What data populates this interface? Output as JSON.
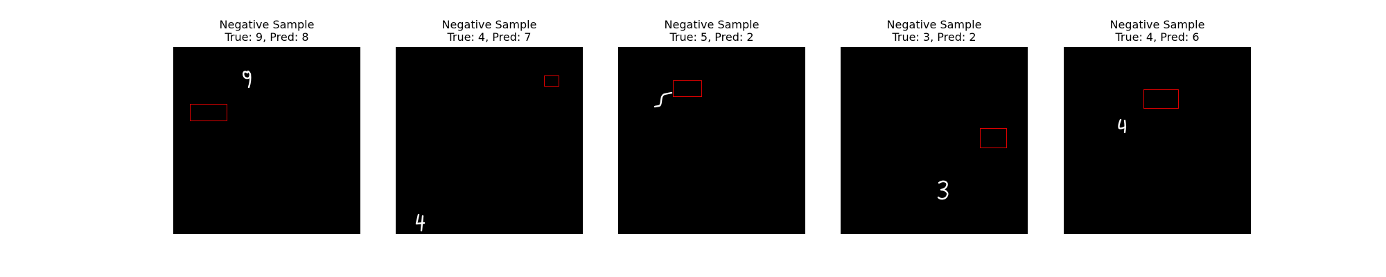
{
  "panels": [
    {
      "heading": "Negative Sample",
      "subtitle": "True: 9, Pred: 8",
      "digit": "9"
    },
    {
      "heading": "Negative Sample",
      "subtitle": "True: 4, Pred: 7",
      "digit": "4"
    },
    {
      "heading": "Negative Sample",
      "subtitle": "True: 5, Pred: 2",
      "digit": "5"
    },
    {
      "heading": "Negative Sample",
      "subtitle": "True: 3, Pred: 2",
      "digit": "3"
    },
    {
      "heading": "Negative Sample",
      "subtitle": "True: 4, Pred: 6",
      "digit": "4"
    }
  ],
  "colors": {
    "background": "#ffffff",
    "image_background": "#000000",
    "digit_stroke": "#ffffff",
    "bounding_box": "#dd0000"
  }
}
